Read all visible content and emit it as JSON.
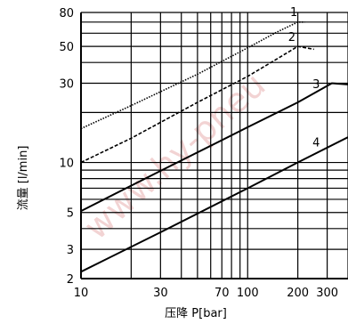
{
  "chart_data": {
    "type": "line",
    "xscale": "log",
    "yscale": "log",
    "xlim": [
      10,
      400
    ],
    "ylim": [
      2,
      80
    ],
    "grid": true,
    "xticks": [
      10,
      30,
      70,
      100,
      200,
      300
    ],
    "xtick_labels": [
      "10",
      "30",
      "70",
      "100",
      "200",
      "300"
    ],
    "yticks": [
      2,
      3,
      5,
      10,
      30,
      50,
      80
    ],
    "ytick_labels": [
      "2",
      "3",
      "5",
      "10",
      "30",
      "50",
      "80"
    ],
    "xlabel": "压降  P[bar]",
    "ylabel": "流量 [l/min]",
    "watermark": "www.hy-pneu",
    "series": [
      {
        "name": "1",
        "style": "dotted",
        "x": [
          10,
          20,
          50,
          100,
          150,
          200,
          220
        ],
        "y": [
          16,
          22,
          34,
          49,
          61,
          70,
          70
        ]
      },
      {
        "name": "2",
        "style": "dashed",
        "x": [
          10,
          20,
          50,
          100,
          150,
          200,
          250
        ],
        "y": [
          10,
          14,
          23,
          33,
          42,
          50,
          48
        ]
      },
      {
        "name": "3",
        "style": "solid",
        "x": [
          10,
          30,
          100,
          200,
          320,
          400
        ],
        "y": [
          5.1,
          8.9,
          16.3,
          23,
          30,
          29.5
        ]
      },
      {
        "name": "4",
        "style": "solid",
        "x": [
          10,
          30,
          100,
          200,
          400
        ],
        "y": [
          2.2,
          3.8,
          7,
          10,
          14.2
        ]
      }
    ],
    "label_anchor": [
      {
        "name": "1",
        "x": 180,
        "y": 76
      },
      {
        "name": "2",
        "x": 175,
        "y": 54
      },
      {
        "name": "3",
        "x": 245,
        "y": 28
      },
      {
        "name": "4",
        "x": 245,
        "y": 12.5
      }
    ]
  }
}
